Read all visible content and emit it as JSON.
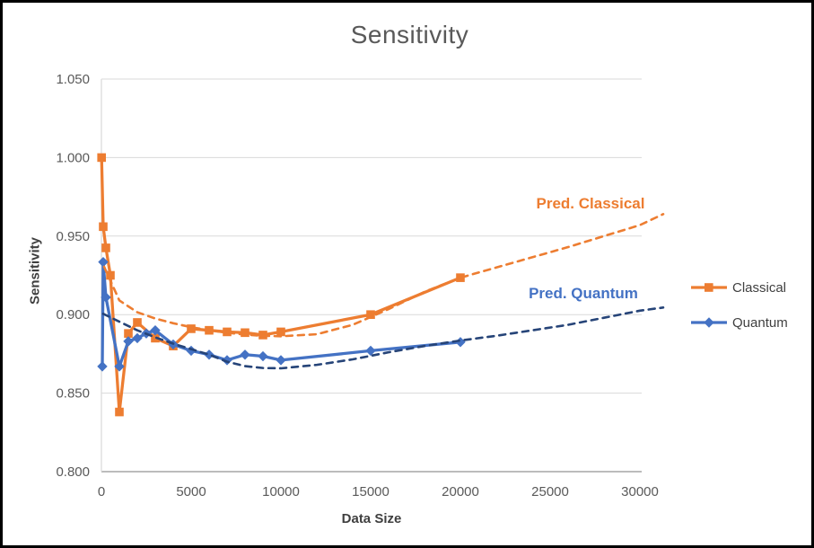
{
  "window": {
    "background": "#ffffff",
    "border_color": "#000000"
  },
  "chart_data": {
    "type": "line",
    "title": "Sensitivity",
    "xlabel": "Data Size",
    "ylabel": "Sensitivity",
    "xlim": [
      0,
      30000
    ],
    "ylim": [
      0.8,
      1.05
    ],
    "x_ticks": [
      0,
      5000,
      10000,
      15000,
      20000,
      25000,
      30000
    ],
    "y_ticks": [
      1.05,
      1.0,
      0.95,
      0.9,
      0.85,
      0.8
    ],
    "grid": "horizontal",
    "grid_color": "#D9D9D9",
    "axis_color": "#A6A6A6",
    "tick_label_color": "#595959",
    "title_color": "#595959",
    "series": [
      {
        "name": "Classical",
        "color": "#ED7D31",
        "marker": "square",
        "style": "solid",
        "in_legend": true,
        "x": [
          10,
          100,
          250,
          500,
          1000,
          1500,
          2000,
          3000,
          4000,
          5000,
          6000,
          7000,
          8000,
          9000,
          10000,
          15000,
          20000
        ],
        "y": [
          1.0,
          0.956,
          0.9425,
          0.925,
          0.838,
          0.888,
          0.895,
          0.885,
          0.88,
          0.891,
          0.89,
          0.889,
          0.8885,
          0.887,
          0.889,
          0.9,
          0.9235
        ]
      },
      {
        "name": "Quantum",
        "color": "#4472C4",
        "marker": "diamond",
        "style": "solid",
        "in_legend": true,
        "x": [
          50,
          100,
          250,
          1000,
          1500,
          2000,
          2500,
          3000,
          4000,
          5000,
          6000,
          7000,
          8000,
          9000,
          10000,
          15000,
          20000
        ],
        "y": [
          0.867,
          0.9335,
          0.911,
          0.867,
          0.883,
          0.885,
          0.888,
          0.89,
          0.881,
          0.877,
          0.8745,
          0.871,
          0.8745,
          0.8735,
          0.871,
          0.877,
          0.8825
        ]
      },
      {
        "name": "Pred. Classical",
        "color": "#ED7D31",
        "marker": "none",
        "style": "dashed",
        "in_legend": false,
        "x": [
          150,
          1000,
          2000,
          3000,
          4000,
          5000,
          6000,
          7000,
          8000,
          9000,
          10000,
          12000,
          14000,
          16000,
          18000,
          20000,
          22000,
          24000,
          26000,
          28000,
          30000,
          31300
        ],
        "y": [
          0.9305,
          0.909,
          0.9015,
          0.8975,
          0.8945,
          0.892,
          0.89,
          0.8885,
          0.8872,
          0.8865,
          0.8862,
          0.8875,
          0.8935,
          0.9035,
          0.9145,
          0.9235,
          0.93,
          0.9365,
          0.943,
          0.95,
          0.957,
          0.964
        ]
      },
      {
        "name": "Pred. Quantum",
        "color": "#264478",
        "marker": "none",
        "style": "dashed",
        "in_legend": false,
        "x": [
          100,
          1000,
          2000,
          3000,
          4000,
          5000,
          6000,
          7000,
          8000,
          9000,
          10000,
          12000,
          14000,
          16000,
          18000,
          20000,
          22000,
          24000,
          26000,
          28000,
          30000,
          31300
        ],
        "y": [
          0.9005,
          0.8955,
          0.89,
          0.8855,
          0.8815,
          0.878,
          0.8745,
          0.87,
          0.8672,
          0.866,
          0.8658,
          0.868,
          0.8715,
          0.876,
          0.88,
          0.8835,
          0.8865,
          0.89,
          0.8935,
          0.898,
          0.9025,
          0.9045
        ]
      }
    ],
    "legend": {
      "position": "right",
      "entries": [
        {
          "label": "Classical",
          "series_index": 0
        },
        {
          "label": "Quantum",
          "series_index": 1
        }
      ]
    },
    "annotations": [
      {
        "text": "Pred. Classical",
        "color": "#ED7D31",
        "x": 27250,
        "y": 0.9705
      },
      {
        "text": "Pred. Quantum",
        "color": "#4472C4",
        "x": 26850,
        "y": 0.9133
      }
    ]
  }
}
